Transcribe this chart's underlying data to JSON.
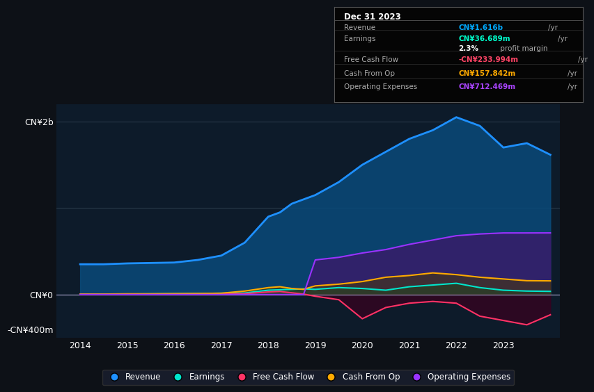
{
  "bg_color": "#0d1117",
  "plot_bg_color": "#0d1b2a",
  "grid_color": "#2a3a4a",
  "title_box": {
    "date": "Dec 31 2023",
    "rows": [
      {
        "label": "Revenue",
        "value": "CN¥1.616b",
        "unit": "/yr",
        "value_color": "#00aaff"
      },
      {
        "label": "Earnings",
        "value": "CN¥36.689m",
        "unit": "/yr",
        "value_color": "#00ffcc"
      },
      {
        "label": "",
        "value": "2.3%",
        "unit": " profit margin",
        "value_color": "#ffffff"
      },
      {
        "label": "Free Cash Flow",
        "value": "-CN¥233.994m",
        "unit": "/yr",
        "value_color": "#ff4466"
      },
      {
        "label": "Cash From Op",
        "value": "CN¥157.842m",
        "unit": "/yr",
        "value_color": "#ffaa00"
      },
      {
        "label": "Operating Expenses",
        "value": "CN¥712.469m",
        "unit": "/yr",
        "value_color": "#aa44ff"
      }
    ]
  },
  "years": [
    2014,
    2014.5,
    2015,
    2015.5,
    2016,
    2016.5,
    2017,
    2017.5,
    2018,
    2018.25,
    2018.5,
    2018.75,
    2019,
    2019.5,
    2020,
    2020.5,
    2021,
    2021.5,
    2022,
    2022.5,
    2023,
    2023.5,
    2024
  ],
  "revenue": [
    350,
    350,
    360,
    365,
    370,
    400,
    450,
    600,
    900,
    950,
    1050,
    1100,
    1150,
    1300,
    1500,
    1650,
    1800,
    1900,
    2050,
    1950,
    1700,
    1750,
    1616
  ],
  "earnings": [
    5,
    5,
    5,
    8,
    10,
    12,
    15,
    18,
    50,
    55,
    60,
    65,
    60,
    80,
    70,
    50,
    90,
    110,
    130,
    80,
    50,
    40,
    36.689
  ],
  "free_cf": [
    0,
    0,
    2,
    2,
    3,
    3,
    5,
    10,
    30,
    35,
    20,
    5,
    -20,
    -60,
    -280,
    -150,
    -100,
    -80,
    -100,
    -250,
    -300,
    -350,
    -233.994
  ],
  "cash_op": [
    5,
    5,
    8,
    8,
    10,
    12,
    15,
    40,
    80,
    90,
    70,
    60,
    100,
    120,
    150,
    200,
    220,
    250,
    230,
    200,
    180,
    160,
    157.842
  ],
  "op_exp": [
    0,
    0,
    0,
    0,
    0,
    0,
    0,
    0,
    0,
    0,
    0,
    0,
    400,
    430,
    480,
    520,
    580,
    630,
    680,
    700,
    712,
    712,
    712.469
  ],
  "revenue_color": "#1e90ff",
  "earnings_color": "#00e5cc",
  "free_cf_color": "#ff3366",
  "cash_op_color": "#ffaa00",
  "op_exp_color": "#9933ff",
  "revenue_fill": "#0a4a7a",
  "op_exp_fill": "#3a1a6a",
  "ylim_min": -500,
  "ylim_max": 2200,
  "yticks": [
    -400,
    0,
    2000
  ],
  "ytick_labels": [
    "-CN¥400m",
    "CN¥0",
    "CN¥2b"
  ],
  "legend": [
    {
      "label": "Revenue",
      "color": "#1e90ff"
    },
    {
      "label": "Earnings",
      "color": "#00e5cc"
    },
    {
      "label": "Free Cash Flow",
      "color": "#ff3366"
    },
    {
      "label": "Cash From Op",
      "color": "#ffaa00"
    },
    {
      "label": "Operating Expenses",
      "color": "#9933ff"
    }
  ]
}
